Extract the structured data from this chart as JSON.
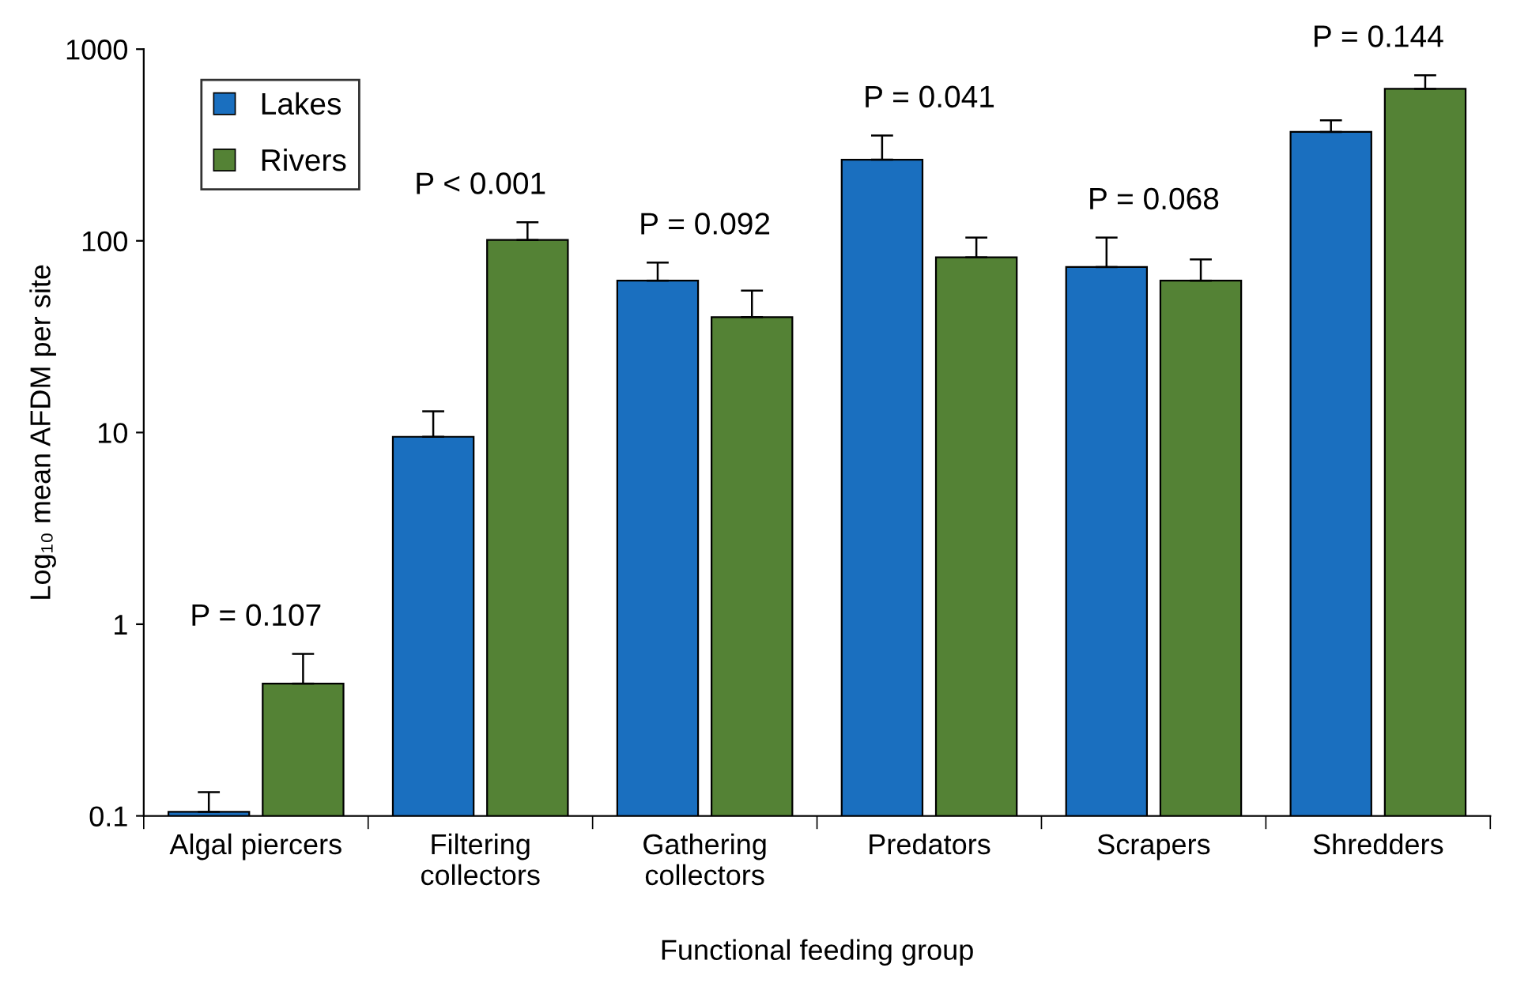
{
  "chart_data": {
    "type": "bar",
    "xlabel": "Functional feeding group",
    "ylabel": "Log₁₀ mean AFDM per site",
    "categories": [
      "Algal piercers",
      "Filtering\ncollectors",
      "Gathering\ncollectors",
      "Predators",
      "Scrapers",
      "Shredders"
    ],
    "series": [
      {
        "name": "Lakes",
        "color": "#1a6fbf",
        "values": [
          0.105,
          9.5,
          62,
          265,
          73,
          370
        ],
        "errors": [
          [
            0.105,
            0.133
          ],
          [
            9.5,
            12.9
          ],
          [
            62,
            77
          ],
          [
            265,
            354
          ],
          [
            73,
            104
          ],
          [
            370,
            425
          ]
        ]
      },
      {
        "name": "Rivers",
        "color": "#548235",
        "values": [
          0.49,
          101,
          40,
          82,
          62,
          621
        ],
        "errors": [
          [
            0.49,
            0.7
          ],
          [
            101,
            125
          ],
          [
            40,
            55
          ],
          [
            82,
            104
          ],
          [
            62,
            80
          ],
          [
            621,
            731
          ]
        ]
      }
    ],
    "log": true,
    "ylim": [
      0.1,
      1000
    ],
    "yticks": [
      0.1,
      1,
      10,
      100,
      1000
    ],
    "grid": false,
    "legend": "top left",
    "annotations": [
      "P = 0.107",
      "P < 0.001",
      "P = 0.092",
      "P = 0.041",
      "P = 0.068",
      "P = 0.144"
    ]
  }
}
